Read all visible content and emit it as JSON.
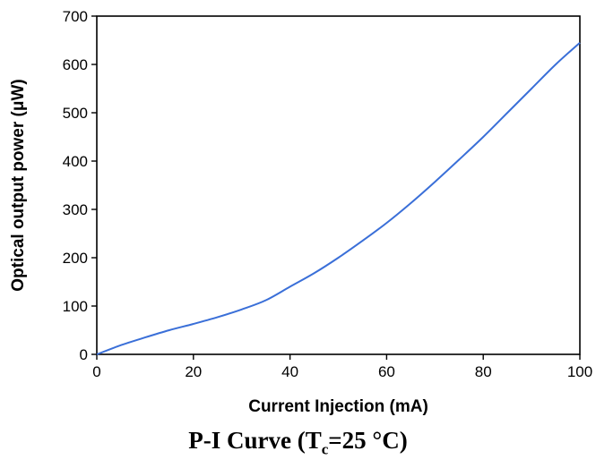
{
  "chart_data": {
    "type": "line",
    "xlabel": "Current Injection (mA)",
    "ylabel": "Optical output power (μW)",
    "xlim": [
      0,
      100
    ],
    "ylim": [
      0,
      700
    ],
    "xticks": [
      0,
      20,
      40,
      60,
      80,
      100
    ],
    "yticks": [
      0,
      100,
      200,
      300,
      400,
      500,
      600,
      700
    ],
    "grid": false,
    "series": [
      {
        "color": "#3a6fd8",
        "x": [
          0,
          5,
          10,
          15,
          20,
          25,
          30,
          35,
          40,
          45,
          50,
          55,
          60,
          65,
          70,
          75,
          80,
          85,
          90,
          95,
          100
        ],
        "y": [
          0,
          19,
          35,
          50,
          63,
          77,
          93,
          112,
          140,
          168,
          200,
          235,
          272,
          313,
          357,
          403,
          450,
          500,
          550,
          600,
          645
        ]
      }
    ]
  },
  "caption": {
    "prefix": "P-I Curve (T",
    "sub": "c",
    "suffix": "=25 °C)"
  }
}
